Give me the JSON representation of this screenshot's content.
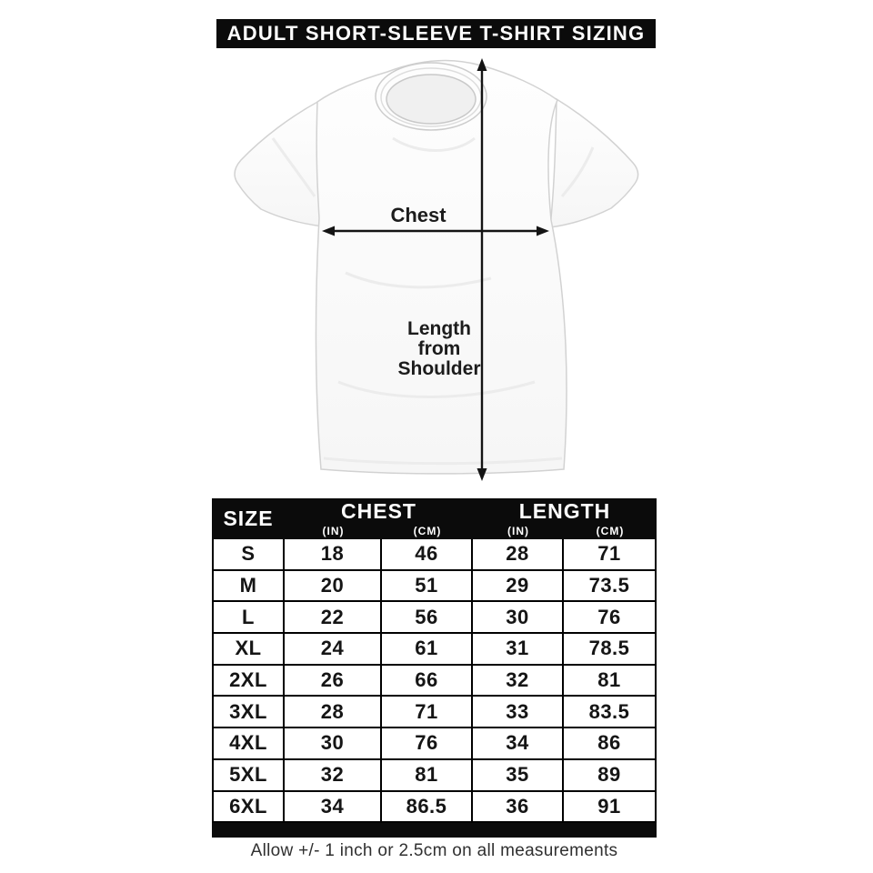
{
  "header": {
    "title": "ADULT SHORT-SLEEVE T-SHIRT SIZING"
  },
  "diagram": {
    "chest_label": "Chest",
    "length_label_lines": {
      "0": "Length",
      "1": "from",
      "2": "Shoulder"
    }
  },
  "size_table": {
    "header": {
      "size": "SIZE",
      "chest": "CHEST",
      "length": "LENGTH",
      "unit_in": "(IN)",
      "unit_cm": "(CM)"
    }
  },
  "chart_data": {
    "type": "table",
    "title": "ADULT SHORT-SLEEVE T-SHIRT SIZING",
    "columns": [
      "SIZE",
      "CHEST (IN)",
      "CHEST (CM)",
      "LENGTH (IN)",
      "LENGTH (CM)"
    ],
    "rows": [
      [
        "S",
        "18",
        "46",
        "28",
        "71"
      ],
      [
        "M",
        "20",
        "51",
        "29",
        "73.5"
      ],
      [
        "L",
        "22",
        "56",
        "30",
        "76"
      ],
      [
        "XL",
        "24",
        "61",
        "31",
        "78.5"
      ],
      [
        "2XL",
        "26",
        "66",
        "32",
        "81"
      ],
      [
        "3XL",
        "28",
        "71",
        "33",
        "83.5"
      ],
      [
        "4XL",
        "30",
        "76",
        "34",
        "86"
      ],
      [
        "5XL",
        "32",
        "81",
        "35",
        "89"
      ],
      [
        "6XL",
        "34",
        "86.5",
        "36",
        "91"
      ]
    ],
    "note": "Allow +/- 1 inch or 2.5cm on all measurements"
  },
  "footer": {
    "note": "Allow +/- 1 inch or 2.5cm on all measurements"
  },
  "colors": {
    "bar": "#0b0b0b",
    "text": "#151515",
    "shirt_outline": "#d6d6d6"
  }
}
